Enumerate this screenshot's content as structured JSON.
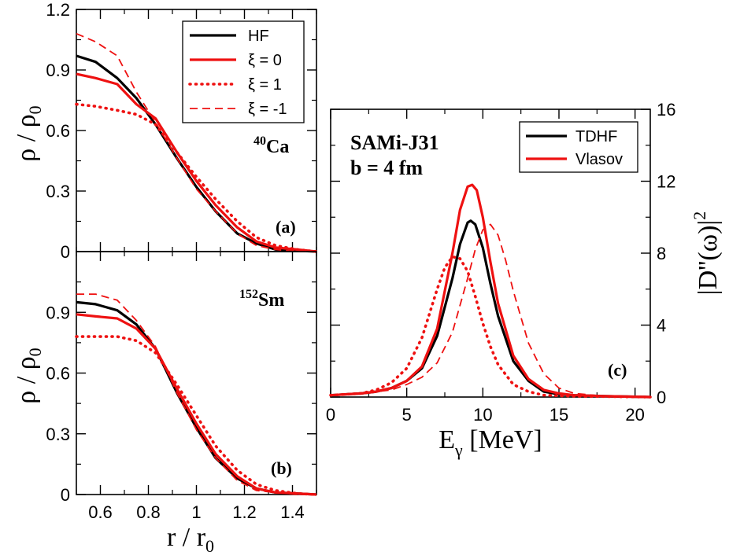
{
  "chart_data": [
    {
      "id": "a",
      "type": "line",
      "panel_label": "(a)",
      "annotation": {
        "mass": "40",
        "element": "Ca"
      },
      "xlim": [
        0.5,
        1.5
      ],
      "ylim": [
        0,
        1.2
      ],
      "y_ticks": [
        "0",
        "0.3",
        "0.6",
        "0.9",
        "1.2"
      ],
      "ylabel": {
        "main": "ρ / ρ",
        "sub": "0"
      },
      "legend": {
        "position": "top-right"
      },
      "series": [
        {
          "name": "HF",
          "color": "#000000",
          "dash": "solid",
          "x": [
            0.5,
            0.58,
            0.67,
            0.75,
            0.83,
            0.92,
            1.0,
            1.08,
            1.17,
            1.25,
            1.33,
            1.42,
            1.5
          ],
          "y": [
            0.97,
            0.94,
            0.86,
            0.76,
            0.63,
            0.46,
            0.32,
            0.2,
            0.09,
            0.04,
            0.01,
            0.005,
            0.0
          ]
        },
        {
          "name": "ξ = 0",
          "color": "#ee1111",
          "dash": "solid",
          "x": [
            0.5,
            0.58,
            0.67,
            0.75,
            0.83,
            0.92,
            1.0,
            1.08,
            1.17,
            1.25,
            1.33,
            1.42,
            1.5
          ],
          "y": [
            0.88,
            0.86,
            0.83,
            0.73,
            0.66,
            0.49,
            0.35,
            0.23,
            0.12,
            0.05,
            0.02,
            0.01,
            0.0
          ]
        },
        {
          "name": "ξ = 1",
          "color": "#ee1111",
          "dash": "dotted",
          "x": [
            0.5,
            0.58,
            0.67,
            0.75,
            0.83,
            0.92,
            1.0,
            1.08,
            1.17,
            1.25,
            1.33,
            1.42,
            1.5
          ],
          "y": [
            0.73,
            0.72,
            0.7,
            0.68,
            0.63,
            0.49,
            0.37,
            0.26,
            0.15,
            0.07,
            0.03,
            0.01,
            0.0
          ]
        },
        {
          "name": "ξ = -1",
          "color": "#ee1111",
          "dash": "dashed",
          "x": [
            0.5,
            0.58,
            0.67,
            0.75,
            0.83,
            0.92,
            1.0,
            1.08,
            1.17,
            1.25,
            1.33,
            1.42,
            1.5
          ],
          "y": [
            1.08,
            1.04,
            0.97,
            0.79,
            0.64,
            0.46,
            0.31,
            0.2,
            0.09,
            0.03,
            0.01,
            0.0,
            0.0
          ]
        }
      ]
    },
    {
      "id": "b",
      "type": "line",
      "panel_label": "(b)",
      "annotation": {
        "mass": "152",
        "element": "Sm"
      },
      "xlim": [
        0.5,
        1.5
      ],
      "ylim": [
        0,
        1.2
      ],
      "x_ticks": [
        "0.6",
        "0.8",
        "1",
        "1.2",
        "1.4"
      ],
      "y_ticks": [
        "0",
        "0.3",
        "0.6",
        "0.9"
      ],
      "xlabel": {
        "main": "r / r",
        "sub": "0"
      },
      "ylabel": {
        "main": "ρ / ρ",
        "sub": "0"
      },
      "series": [
        {
          "name": "HF",
          "color": "#000000",
          "dash": "solid",
          "x": [
            0.5,
            0.58,
            0.67,
            0.75,
            0.83,
            0.92,
            1.0,
            1.08,
            1.17,
            1.25,
            1.33,
            1.42,
            1.5
          ],
          "y": [
            0.95,
            0.94,
            0.91,
            0.84,
            0.72,
            0.5,
            0.33,
            0.18,
            0.08,
            0.03,
            0.01,
            0.005,
            0.0
          ]
        },
        {
          "name": "ξ = 0",
          "color": "#ee1111",
          "dash": "solid",
          "x": [
            0.5,
            0.58,
            0.67,
            0.75,
            0.83,
            0.92,
            1.0,
            1.08,
            1.17,
            1.25,
            1.33,
            1.42,
            1.5
          ],
          "y": [
            0.89,
            0.88,
            0.87,
            0.82,
            0.72,
            0.52,
            0.35,
            0.2,
            0.09,
            0.03,
            0.01,
            0.005,
            0.0
          ]
        },
        {
          "name": "ξ = 1",
          "color": "#ee1111",
          "dash": "dotted",
          "x": [
            0.5,
            0.58,
            0.67,
            0.75,
            0.83,
            0.92,
            1.0,
            1.08,
            1.17,
            1.25,
            1.33,
            1.42,
            1.5
          ],
          "y": [
            0.78,
            0.78,
            0.78,
            0.76,
            0.7,
            0.54,
            0.39,
            0.24,
            0.12,
            0.05,
            0.02,
            0.005,
            0.0
          ]
        },
        {
          "name": "ξ = -1",
          "color": "#ee1111",
          "dash": "dashed",
          "x": [
            0.5,
            0.58,
            0.67,
            0.75,
            0.83,
            0.92,
            1.0,
            1.08,
            1.17,
            1.25,
            1.33,
            1.42,
            1.5
          ],
          "y": [
            0.99,
            0.99,
            0.96,
            0.86,
            0.73,
            0.5,
            0.32,
            0.18,
            0.07,
            0.02,
            0.01,
            0.0,
            0.0
          ]
        }
      ]
    },
    {
      "id": "c",
      "type": "line",
      "panel_label": "(c)",
      "annotation_lines": [
        "SAMi-J31",
        "b = 4 fm"
      ],
      "xlim": [
        0,
        21
      ],
      "ylim": [
        0,
        16
      ],
      "x_ticks": [
        "0",
        "5",
        "10",
        "15",
        "20"
      ],
      "y_ticks": [
        "0",
        "4",
        "8",
        "12",
        "16"
      ],
      "xlabel": {
        "main": "E",
        "sub": "γ",
        "rest": " [MeV]"
      },
      "ylabel": {
        "main": "|D''(ω)|",
        "sup": "2"
      },
      "legend": {
        "position": "top-right"
      },
      "series": [
        {
          "name": "TDHF",
          "color": "#000000",
          "dash": "solid",
          "in_legend": true,
          "x": [
            0,
            2,
            3,
            4,
            5,
            6,
            7,
            8,
            8.5,
            9,
            9.2,
            9.5,
            10,
            10.5,
            11,
            12,
            13,
            14,
            15,
            16,
            18,
            21
          ],
          "y": [
            0.1,
            0.2,
            0.3,
            0.5,
            0.9,
            1.6,
            3.4,
            6.6,
            8.5,
            9.7,
            9.8,
            9.6,
            8.3,
            6.3,
            4.5,
            2.0,
            0.9,
            0.3,
            0.15,
            0.1,
            0.05,
            0.0
          ]
        },
        {
          "name": "Vlasov",
          "color": "#ee1111",
          "dash": "solid",
          "in_legend": true,
          "x": [
            0,
            2,
            3,
            4,
            5,
            6,
            7,
            8,
            8.5,
            9,
            9.3,
            9.6,
            10,
            10.5,
            11,
            12,
            13,
            14,
            15,
            16,
            18,
            21
          ],
          "y": [
            0.1,
            0.2,
            0.3,
            0.5,
            0.9,
            1.7,
            3.8,
            8.0,
            10.4,
            11.7,
            11.8,
            11.5,
            10.0,
            7.5,
            5.2,
            2.3,
            1.0,
            0.4,
            0.2,
            0.1,
            0.05,
            0.0
          ]
        },
        {
          "name": "Vlasov ξ = 1",
          "color": "#ee1111",
          "dash": "dotted",
          "in_legend": false,
          "x": [
            0,
            2,
            3,
            4,
            5,
            6,
            7,
            7.5,
            8,
            8.5,
            9,
            9.5,
            10,
            10.5,
            11,
            12,
            13,
            14,
            16,
            21
          ],
          "y": [
            0.1,
            0.2,
            0.4,
            0.8,
            1.6,
            3.3,
            6.0,
            7.2,
            7.8,
            7.7,
            7.0,
            5.6,
            4.1,
            2.8,
            1.8,
            0.7,
            0.3,
            0.1,
            0.05,
            0.0
          ]
        },
        {
          "name": "Vlasov ξ = -1",
          "color": "#ee1111",
          "dash": "dashed",
          "in_legend": false,
          "x": [
            0,
            2,
            3,
            4,
            5,
            6,
            7,
            8,
            9,
            9.5,
            10,
            10.5,
            11,
            11.5,
            12,
            13,
            14,
            15,
            16,
            18,
            21
          ],
          "y": [
            0.1,
            0.2,
            0.3,
            0.4,
            0.7,
            1.1,
            1.9,
            3.6,
            6.6,
            8.2,
            9.3,
            9.6,
            9.0,
            7.6,
            5.9,
            3.0,
            1.3,
            0.5,
            0.2,
            0.05,
            0.0
          ]
        }
      ]
    }
  ]
}
